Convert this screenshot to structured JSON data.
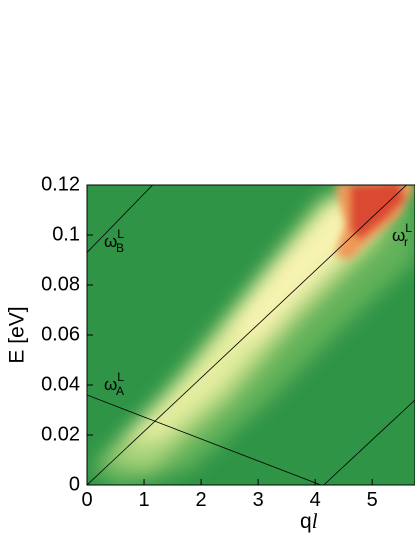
{
  "chart_data": {
    "type": "heatmap",
    "xlabel": "q",
    "xlabel_italic": "l",
    "ylabel": "E [eV]",
    "xlim": [
      0,
      5.75
    ],
    "ylim": [
      0,
      0.12
    ],
    "xticks": [
      0,
      1,
      2,
      3,
      4,
      5
    ],
    "yticks": [
      0,
      0.02,
      0.04,
      0.06,
      0.08,
      0.1,
      0.12
    ],
    "lines": [
      {
        "x": [
          0,
          1.15
        ],
        "values": [
          0.093,
          0.12
        ],
        "color": "#000000"
      },
      {
        "x": [
          0,
          4.1
        ],
        "values": [
          0.036,
          0
        ],
        "color": "#000000"
      },
      {
        "x": [
          0,
          5.6
        ],
        "values": [
          0,
          0.12
        ],
        "color": "#000000"
      },
      {
        "x": [
          4.15,
          5.75
        ],
        "values": [
          0,
          0.034
        ],
        "color": "#000000"
      }
    ],
    "annotations": [
      {
        "text": "ω",
        "sub": "B",
        "sup": "L"
      },
      {
        "text": "ω",
        "sub": "A",
        "sup": "L"
      },
      {
        "text": "ω",
        "sub": "r",
        "sup": "L"
      }
    ]
  }
}
